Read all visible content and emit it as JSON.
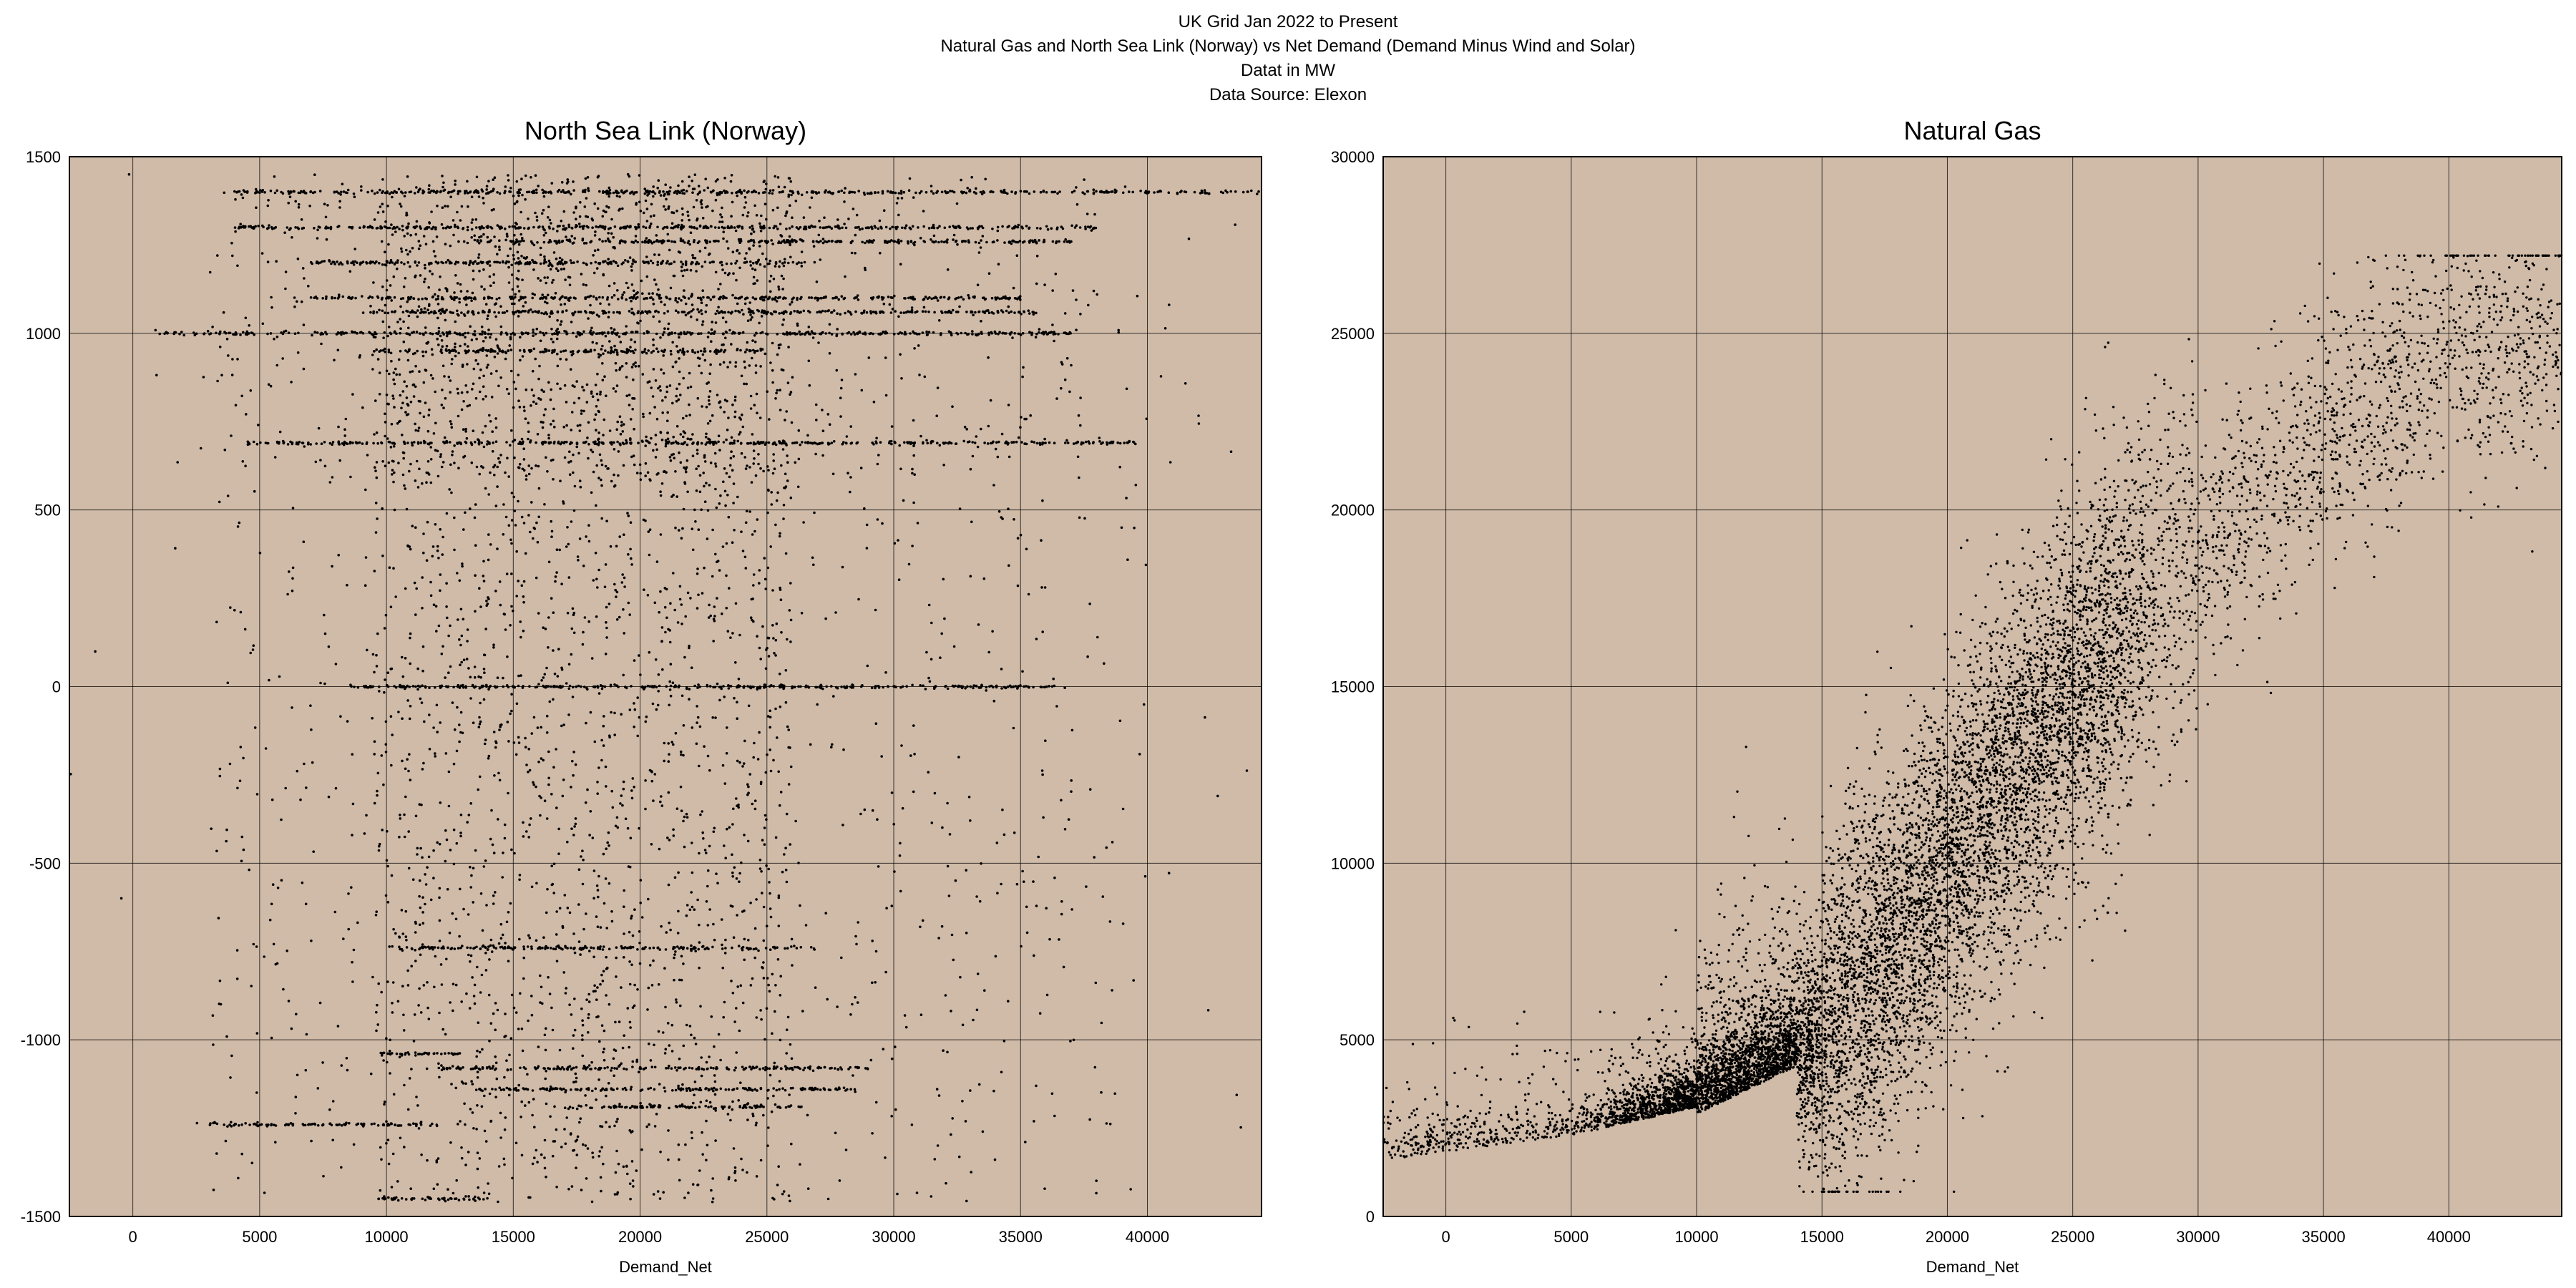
{
  "header": {
    "line1": "UK Grid Jan 2022 to Present",
    "line2": "Natural Gas and North Sea Link (Norway) vs Net Demand (Demand Minus Wind and Solar)",
    "line3": "Datat in MW",
    "line4": "Data Source: Elexon"
  },
  "colors": {
    "plot_background": "#d0bba8",
    "points": "#000000",
    "grid": "#000000"
  },
  "chart_data": [
    {
      "type": "scatter",
      "title": "North Sea Link (Norway)",
      "xlabel": "Demand_Net",
      "ylabel": "",
      "xlim": [
        -2500,
        44500
      ],
      "ylim": [
        -1500,
        1500
      ],
      "xticks": [
        0,
        5000,
        10000,
        15000,
        20000,
        25000,
        30000,
        35000,
        40000
      ],
      "yticks": [
        -1500,
        -1000,
        -500,
        0,
        500,
        1000,
        1500
      ],
      "grid": true,
      "legend": "none",
      "description_of_distribution": {
        "x_range": [
          -2500,
          44000
        ],
        "y_range": [
          -1460,
          1480
        ],
        "dense_x_band": [
          9500,
          26000
        ],
        "horizontal_bands": [
          {
            "y": 1400,
            "x_range": [
              3500,
              44500
            ]
          },
          {
            "y": 1300,
            "x_range": [
              4000,
              38000
            ]
          },
          {
            "y": 1260,
            "x_range": [
              13000,
              37000
            ]
          },
          {
            "y": 1200,
            "x_range": [
              7000,
              26500
            ]
          },
          {
            "y": 1100,
            "x_range": [
              7000,
              35000
            ]
          },
          {
            "y": 1060,
            "x_range": [
              9000,
              36000
            ]
          },
          {
            "y": 1000,
            "x_range": [
              1000,
              37000
            ]
          },
          {
            "y": 950,
            "x_range": [
              9500,
              25000
            ]
          },
          {
            "y": 690,
            "x_range": [
              4500,
              40000
            ]
          },
          {
            "y": 0,
            "x_range": [
              8500,
              37000
            ]
          },
          {
            "y": -740,
            "x_range": [
              10500,
              27000
            ]
          },
          {
            "y": -1040,
            "x_range": [
              9500,
              13000
            ]
          },
          {
            "y": -1080,
            "x_range": [
              12000,
              29000
            ]
          },
          {
            "y": -1140,
            "x_range": [
              13500,
              28500
            ]
          },
          {
            "y": -1190,
            "x_range": [
              17000,
              26500
            ]
          },
          {
            "y": -1240,
            "x_range": [
              2500,
              12000
            ]
          },
          {
            "y": -1450,
            "x_range": [
              9500,
              14000
            ]
          }
        ]
      }
    },
    {
      "type": "scatter",
      "title": "Natural Gas",
      "xlabel": "Demand_Net",
      "ylabel": "",
      "xlim": [
        -2500,
        44500
      ],
      "ylim": [
        0,
        30000
      ],
      "xticks": [
        0,
        5000,
        10000,
        15000,
        20000,
        25000,
        30000,
        35000,
        40000
      ],
      "yticks": [
        0,
        5000,
        10000,
        15000,
        20000,
        25000,
        30000
      ],
      "grid": true,
      "legend": "none",
      "description_of_distribution": {
        "trend_points": [
          {
            "x": -2500,
            "y": 1800
          },
          {
            "x": 5000,
            "y": 2500
          },
          {
            "x": 10000,
            "y": 3300
          },
          {
            "x": 15000,
            "y": 5000
          },
          {
            "x": 20000,
            "y": 10000
          },
          {
            "x": 25000,
            "y": 15000
          },
          {
            "x": 30000,
            "y": 19000
          },
          {
            "x": 35000,
            "y": 22000
          },
          {
            "x": 40000,
            "y": 24500
          },
          {
            "x": 44500,
            "y": 25000
          }
        ],
        "max_y": 27200,
        "min_y": 700
      }
    }
  ]
}
